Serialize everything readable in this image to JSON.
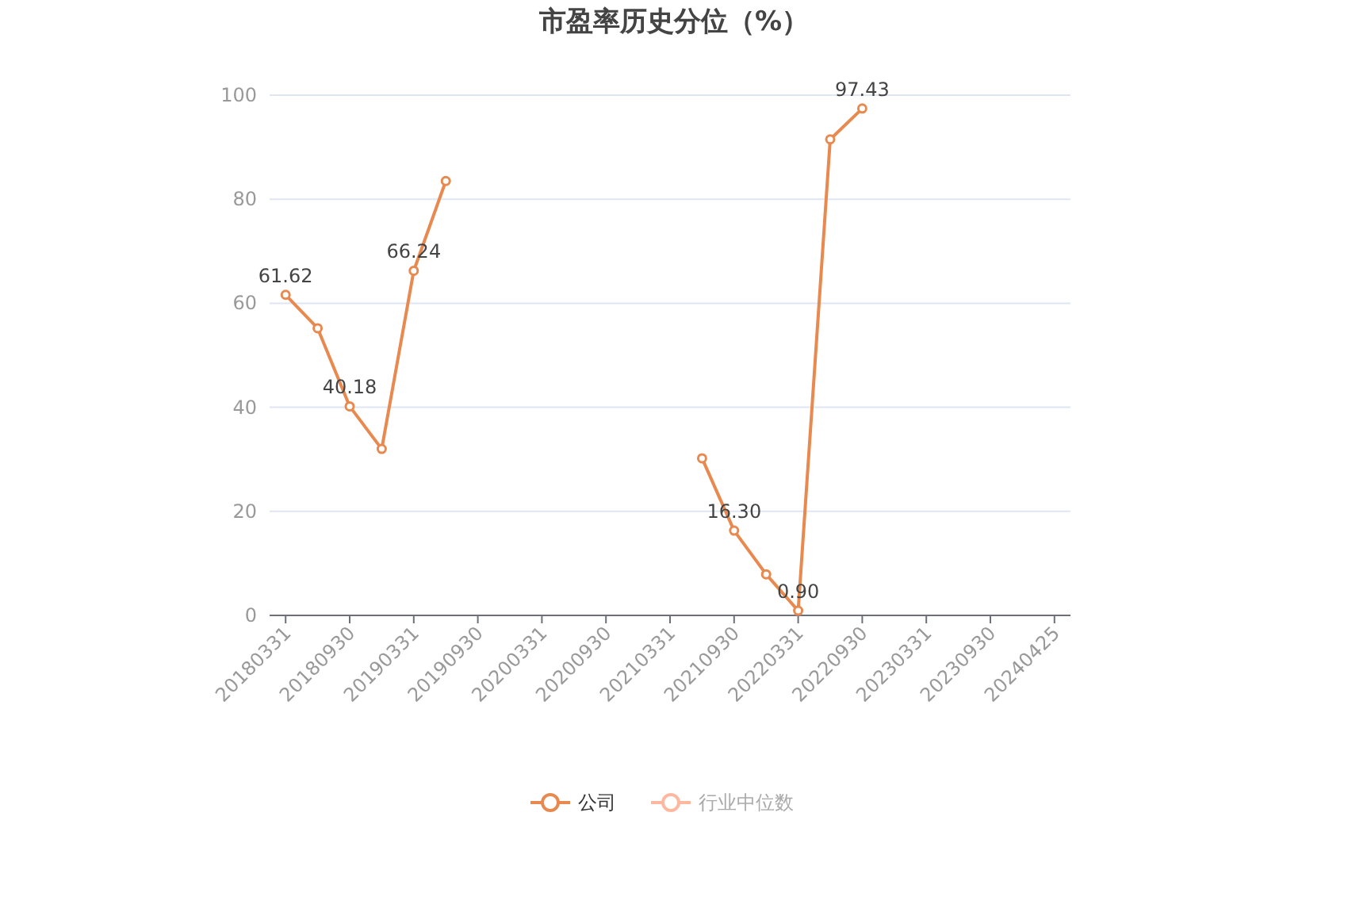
{
  "chart_data": {
    "type": "line",
    "title": "市盈率历史分位（%）",
    "categories": [
      "20180331",
      null,
      "20180930",
      null,
      "20190331",
      null,
      "20190930",
      null,
      "20200331",
      null,
      "20200930",
      null,
      "20210331",
      null,
      "20210930",
      null,
      "20220331",
      null,
      "20220930",
      null,
      "20230331",
      null,
      "20230930",
      null,
      "20240425"
    ],
    "series": [
      {
        "name": "公司",
        "color": "#e8894f",
        "values": [
          61.62,
          55.2,
          40.18,
          32.0,
          66.24,
          83.5,
          null,
          null,
          null,
          null,
          null,
          null,
          null,
          30.2,
          16.3,
          7.9,
          0.9,
          91.5,
          97.43,
          null,
          null,
          null,
          null,
          null,
          null
        ],
        "value_labels": [
          "61.62",
          null,
          "40.18",
          null,
          "66.24",
          null,
          null,
          null,
          null,
          null,
          null,
          null,
          null,
          null,
          "16.30",
          null,
          "0.90",
          null,
          "97.43",
          null,
          null,
          null,
          null,
          null,
          null
        ]
      },
      {
        "name": "行业中位数",
        "color": "#ffb8a0",
        "values": [
          null,
          null,
          null,
          null,
          null,
          null,
          null,
          null,
          null,
          null,
          null,
          null,
          null,
          null,
          null,
          null,
          null,
          null,
          null,
          null,
          null,
          null,
          null,
          null,
          null
        ]
      }
    ],
    "ylim": [
      0,
      100
    ],
    "yticks": [
      0,
      20,
      40,
      60,
      80,
      100
    ],
    "grid": "y",
    "legend": "bottom",
    "marker": "circle",
    "line_style": "solid"
  }
}
